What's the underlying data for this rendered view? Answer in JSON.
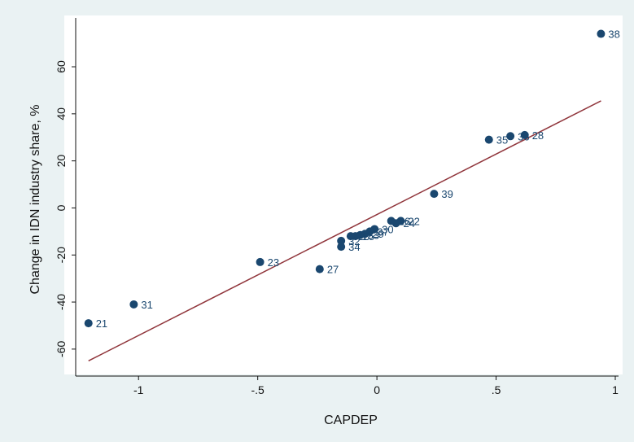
{
  "chart_data": {
    "type": "scatter",
    "title": "",
    "xlabel": "CAPDEP",
    "ylabel": "Change in IDN industry share, %",
    "xlim": [
      -1.25,
      1.0
    ],
    "ylim": [
      -68,
      78
    ],
    "xticks": [
      {
        "value": -1,
        "label": "-1"
      },
      {
        "value": -0.5,
        "label": "-.5"
      },
      {
        "value": 0,
        "label": "0"
      },
      {
        "value": 0.5,
        "label": ".5"
      },
      {
        "value": 1,
        "label": "1"
      }
    ],
    "yticks": [
      {
        "value": -60,
        "label": "-60"
      },
      {
        "value": -40,
        "label": "-40"
      },
      {
        "value": -20,
        "label": "-20"
      },
      {
        "value": 0,
        "label": "0"
      },
      {
        "value": 20,
        "label": "20"
      },
      {
        "value": 40,
        "label": "40"
      },
      {
        "value": 60,
        "label": "60"
      }
    ],
    "grid": false,
    "legend": "none",
    "colors": {
      "marker": "#1a476f",
      "fit_line": "#90353b",
      "plot_bg": "#ffffff",
      "outer_bg": "#eaf2f3"
    },
    "points": [
      {
        "label": "38",
        "x": 0.94,
        "y": 74
      },
      {
        "label": "35",
        "x": 0.47,
        "y": 29
      },
      {
        "label": "36",
        "x": 0.56,
        "y": 30.5
      },
      {
        "label": "28",
        "x": 0.62,
        "y": 31
      },
      {
        "label": "39",
        "x": 0.24,
        "y": 6
      },
      {
        "label": "22",
        "x": 0.1,
        "y": -5.5
      },
      {
        "label": "24",
        "x": 0.08,
        "y": -6.5
      },
      {
        "label": "26",
        "x": 0.06,
        "y": -5.5
      },
      {
        "label": "30",
        "x": -0.01,
        "y": -9
      },
      {
        "label": "37",
        "x": -0.03,
        "y": -10
      },
      {
        "label": "29",
        "x": -0.05,
        "y": -11
      },
      {
        "label": "33",
        "x": -0.07,
        "y": -11.5
      },
      {
        "label": "25",
        "x": -0.09,
        "y": -12
      },
      {
        "label": "20",
        "x": -0.11,
        "y": -12
      },
      {
        "label": "32",
        "x": -0.15,
        "y": -14
      },
      {
        "label": "34",
        "x": -0.15,
        "y": -16.5
      },
      {
        "label": "27",
        "x": -0.24,
        "y": -26
      },
      {
        "label": "23",
        "x": -0.49,
        "y": -23
      },
      {
        "label": "31",
        "x": -1.02,
        "y": -41
      },
      {
        "label": "21",
        "x": -1.21,
        "y": -49
      }
    ],
    "fit_line": {
      "x": [
        -1.21,
        0.94
      ],
      "y": [
        -65,
        45.5
      ]
    }
  }
}
